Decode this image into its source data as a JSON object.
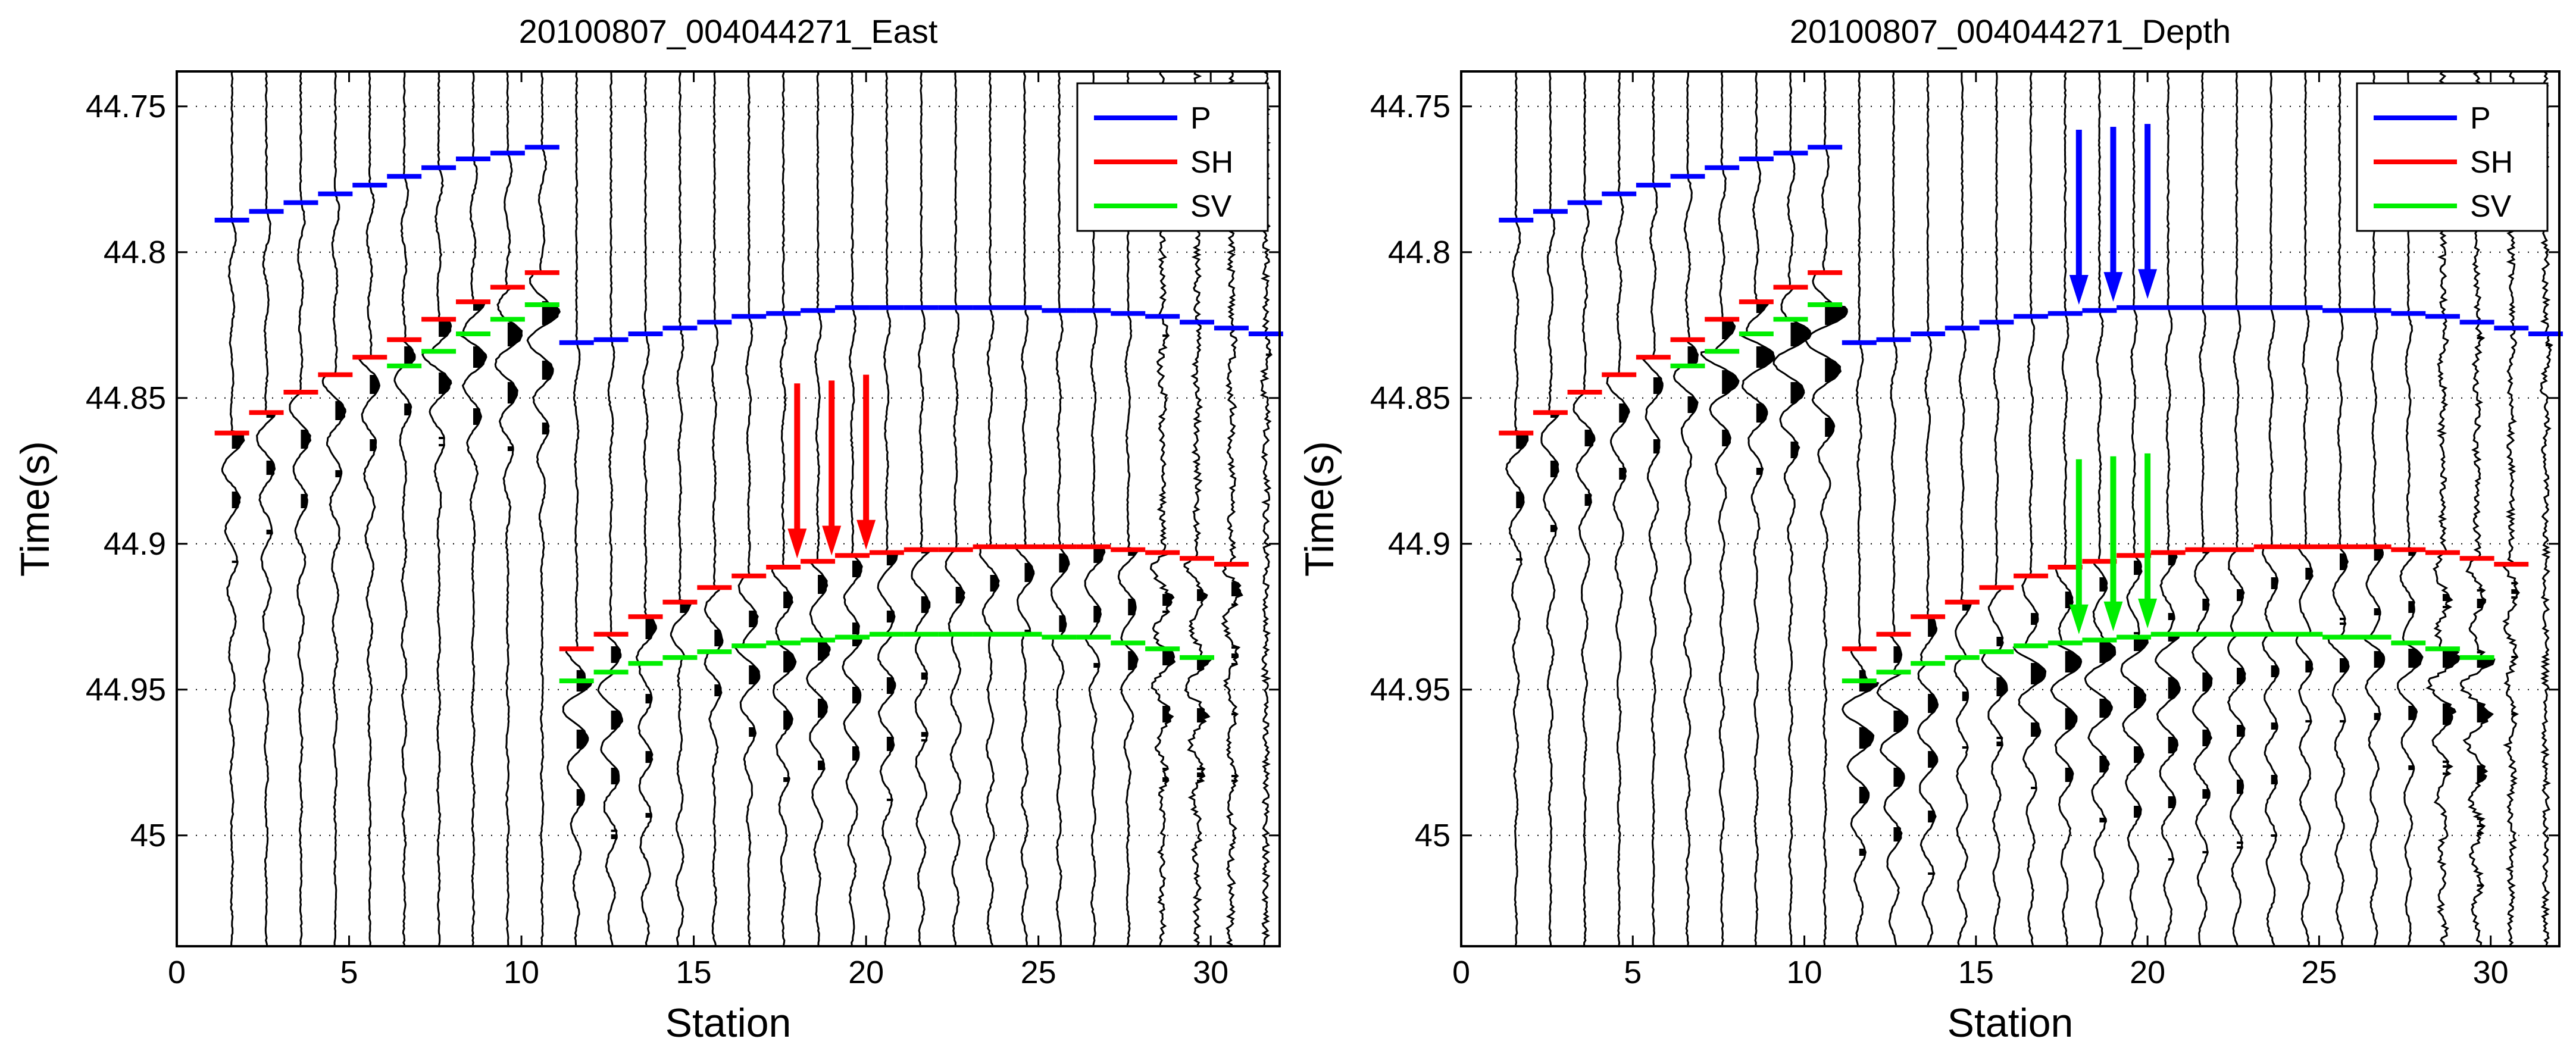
{
  "colors": {
    "P": "#0000ff",
    "SH": "#ff0000",
    "SV": "#00ee00",
    "trace": "#000000",
    "axis": "#000000",
    "grid": "#000000"
  },
  "chart_data": [
    {
      "type": "line",
      "title": "20100807_004044271_East",
      "xlabel": "Station",
      "ylabel": "Time(s)",
      "xlim": [
        0,
        32
      ],
      "ylim": [
        45.038,
        44.738
      ],
      "xticks": [
        0,
        5,
        10,
        15,
        20,
        25,
        30
      ],
      "xtick_labels": [
        "0",
        "5",
        "10",
        "15",
        "20",
        "25",
        "30"
      ],
      "yticks": [
        44.75,
        44.8,
        44.85,
        44.9,
        44.95,
        45
      ],
      "ytick_labels": [
        "44.75",
        "44.8",
        "44.85",
        "44.9",
        "44.95",
        "45"
      ],
      "legend": {
        "position": "top-right",
        "entries": [
          "P",
          "SH",
          "SV"
        ]
      },
      "series": [
        {
          "name": "P",
          "color": "blue",
          "x": [
            1,
            2,
            3,
            4,
            5,
            6,
            7,
            8,
            9,
            10,
            11,
            12,
            13,
            14,
            15,
            16,
            17,
            18,
            19,
            20,
            21,
            22,
            23,
            24,
            25,
            26,
            27,
            28,
            29,
            30,
            31
          ],
          "y": [
            44.789,
            44.786,
            44.783,
            44.78,
            44.777,
            44.774,
            44.771,
            44.768,
            44.766,
            44.764,
            44.831,
            44.83,
            44.828,
            44.826,
            44.824,
            44.822,
            44.821,
            44.82,
            44.819,
            44.819,
            44.819,
            44.819,
            44.819,
            44.819,
            44.82,
            44.82,
            44.821,
            44.822,
            44.824,
            44.826,
            44.828
          ]
        },
        {
          "name": "SH",
          "color": "red",
          "x": [
            1,
            2,
            3,
            4,
            5,
            6,
            7,
            8,
            9,
            10,
            11,
            12,
            13,
            14,
            15,
            16,
            17,
            18,
            19,
            20,
            21,
            22,
            23,
            24,
            25,
            26,
            27,
            28,
            29,
            30
          ],
          "y": [
            44.862,
            44.855,
            44.848,
            44.842,
            44.836,
            44.83,
            44.823,
            44.817,
            44.812,
            44.807,
            44.936,
            44.931,
            44.925,
            44.92,
            44.915,
            44.911,
            44.908,
            44.906,
            44.904,
            44.903,
            44.902,
            44.902,
            44.901,
            44.901,
            44.901,
            44.901,
            44.902,
            44.903,
            44.905,
            44.907
          ]
        },
        {
          "name": "SV",
          "color": "green",
          "x": [
            6,
            7,
            8,
            9,
            10,
            11,
            12,
            13,
            14,
            15,
            16,
            17,
            18,
            19,
            20,
            21,
            22,
            23,
            24,
            25,
            26,
            27,
            28,
            29
          ],
          "y": [
            44.839,
            44.834,
            44.828,
            44.823,
            44.818,
            44.947,
            44.944,
            44.941,
            44.939,
            44.937,
            44.935,
            44.934,
            44.933,
            44.932,
            44.931,
            44.931,
            44.931,
            44.931,
            44.931,
            44.932,
            44.932,
            44.934,
            44.936,
            44.939
          ]
        }
      ],
      "arrows": [
        {
          "station": 18,
          "from": 44.845,
          "to": 44.905,
          "color": "red"
        },
        {
          "station": 19,
          "from": 44.844,
          "to": 44.904,
          "color": "red"
        },
        {
          "station": 20,
          "from": 44.842,
          "to": 44.902,
          "color": "red"
        }
      ]
    },
    {
      "type": "line",
      "title": "20100807_004044271_Depth",
      "xlabel": "Station",
      "ylabel": "Time(s)",
      "xlim": [
        0,
        32
      ],
      "ylim": [
        45.038,
        44.738
      ],
      "xticks": [
        0,
        5,
        10,
        15,
        20,
        25,
        30
      ],
      "xtick_labels": [
        "0",
        "5",
        "10",
        "15",
        "20",
        "25",
        "30"
      ],
      "yticks": [
        44.75,
        44.8,
        44.85,
        44.9,
        44.95,
        45
      ],
      "ytick_labels": [
        "44.75",
        "44.8",
        "44.85",
        "44.9",
        "44.95",
        "45"
      ],
      "legend": {
        "position": "top-right",
        "entries": [
          "P",
          "SH",
          "SV"
        ]
      },
      "series": [
        {
          "name": "P",
          "color": "blue",
          "x": [
            1,
            2,
            3,
            4,
            5,
            6,
            7,
            8,
            9,
            10,
            11,
            12,
            13,
            14,
            15,
            16,
            17,
            18,
            19,
            20,
            21,
            22,
            23,
            24,
            25,
            26,
            27,
            28,
            29,
            30,
            31
          ],
          "y": [
            44.789,
            44.786,
            44.783,
            44.78,
            44.777,
            44.774,
            44.771,
            44.768,
            44.766,
            44.764,
            44.831,
            44.83,
            44.828,
            44.826,
            44.824,
            44.822,
            44.821,
            44.82,
            44.819,
            44.819,
            44.819,
            44.819,
            44.819,
            44.819,
            44.82,
            44.82,
            44.821,
            44.822,
            44.824,
            44.826,
            44.828
          ]
        },
        {
          "name": "SH",
          "color": "red",
          "x": [
            1,
            2,
            3,
            4,
            5,
            6,
            7,
            8,
            9,
            10,
            11,
            12,
            13,
            14,
            15,
            16,
            17,
            18,
            19,
            20,
            21,
            22,
            23,
            24,
            25,
            26,
            27,
            28,
            29,
            30
          ],
          "y": [
            44.862,
            44.855,
            44.848,
            44.842,
            44.836,
            44.83,
            44.823,
            44.817,
            44.812,
            44.807,
            44.936,
            44.931,
            44.925,
            44.92,
            44.915,
            44.911,
            44.908,
            44.906,
            44.904,
            44.903,
            44.902,
            44.902,
            44.901,
            44.901,
            44.901,
            44.901,
            44.902,
            44.903,
            44.905,
            44.907
          ]
        },
        {
          "name": "SV",
          "color": "green",
          "x": [
            6,
            7,
            8,
            9,
            10,
            11,
            12,
            13,
            14,
            15,
            16,
            17,
            18,
            19,
            20,
            21,
            22,
            23,
            24,
            25,
            26,
            27,
            28,
            29
          ],
          "y": [
            44.839,
            44.834,
            44.828,
            44.823,
            44.818,
            44.947,
            44.944,
            44.941,
            44.939,
            44.937,
            44.935,
            44.934,
            44.933,
            44.932,
            44.931,
            44.931,
            44.931,
            44.931,
            44.931,
            44.932,
            44.932,
            44.934,
            44.936,
            44.939
          ]
        }
      ],
      "arrows": [
        {
          "station": 18,
          "from": 44.758,
          "to": 44.818,
          "color": "blue"
        },
        {
          "station": 19,
          "from": 44.757,
          "to": 44.817,
          "color": "blue"
        },
        {
          "station": 20,
          "from": 44.756,
          "to": 44.816,
          "color": "blue"
        },
        {
          "station": 18,
          "from": 44.871,
          "to": 44.931,
          "color": "green"
        },
        {
          "station": 19,
          "from": 44.87,
          "to": 44.93,
          "color": "green"
        },
        {
          "station": 20,
          "from": 44.869,
          "to": 44.929,
          "color": "green"
        }
      ]
    }
  ]
}
